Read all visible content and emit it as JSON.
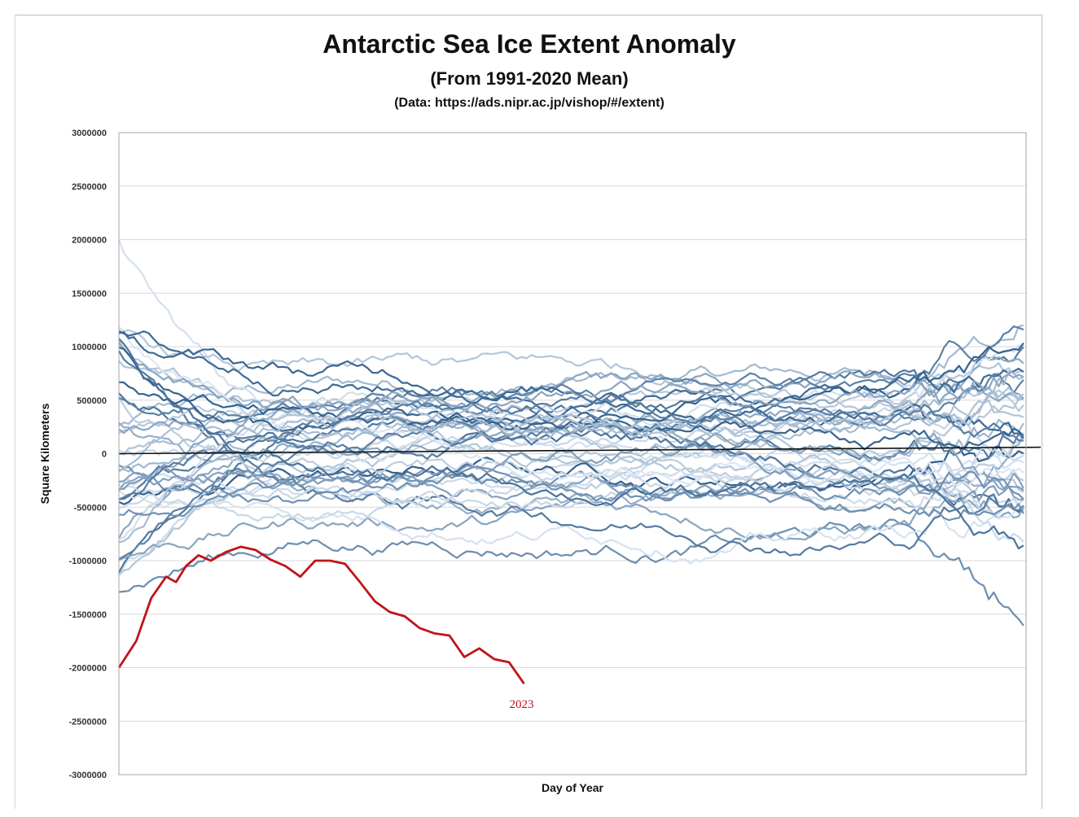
{
  "chart_data": {
    "type": "line",
    "title": "Antarctic Sea Ice Extent Anomaly",
    "subtitle": "(From 1991-2020 Mean)",
    "source": "(Data: https://ads.nipr.ac.jp/vishop/#/extent)",
    "xlabel": "Day of Year",
    "ylabel": "Square Kilometers",
    "xlim": [
      1,
      366
    ],
    "ylim": [
      -3000000,
      3000000
    ],
    "yticks": [
      3000000,
      2500000,
      2000000,
      1500000,
      1000000,
      500000,
      0,
      -500000,
      -1000000,
      -1500000,
      -2000000,
      -2500000,
      -3000000
    ],
    "grid": true,
    "legend": "none",
    "zero_line": {
      "x": [
        1,
        366
      ],
      "y": [
        0,
        60000
      ]
    },
    "highlight": {
      "label": "2023",
      "color": "#c0141a",
      "x": [
        1,
        8,
        14,
        20,
        24,
        28,
        33,
        38,
        44,
        50,
        56,
        62,
        68,
        74,
        80,
        86,
        92,
        98,
        104,
        110,
        116,
        122,
        128,
        134,
        140,
        146,
        152,
        158,
        164
      ],
      "y": [
        -2000000,
        -1750000,
        -1350000,
        -1150000,
        -1200000,
        -1050000,
        -950000,
        -1000000,
        -920000,
        -870000,
        -900000,
        -990000,
        -1050000,
        -1150000,
        -1000000,
        -1000000,
        -1030000,
        -1200000,
        -1380000,
        -1480000,
        -1520000,
        -1630000,
        -1680000,
        -1700000,
        -1900000,
        -1820000,
        -1920000,
        -1950000,
        -2150000
      ]
    },
    "other_years": {
      "color_range": [
        "#315f8c",
        "#dfe9f4"
      ],
      "count": 44,
      "note_days": [
        1,
        366
      ]
    }
  }
}
